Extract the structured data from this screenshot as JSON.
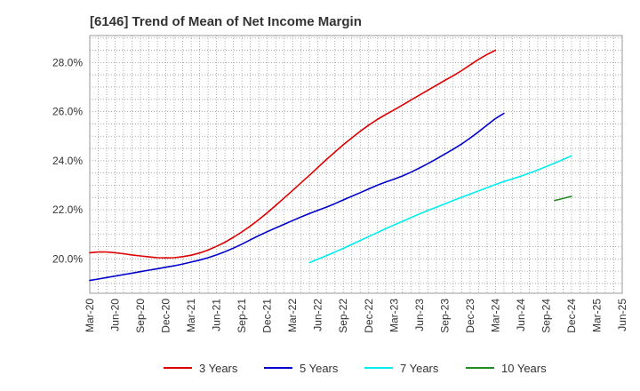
{
  "title": "[6146]  Trend of Mean of Net Income Margin",
  "chart_data": {
    "type": "line",
    "title": "[6146]  Trend of Mean of Net Income Margin",
    "xlabel": "",
    "ylabel": "",
    "x_ticks": [
      "Mar-20",
      "Jun-20",
      "Sep-20",
      "Dec-20",
      "Mar-21",
      "Jun-21",
      "Sep-21",
      "Dec-21",
      "Mar-22",
      "Jun-22",
      "Sep-22",
      "Dec-22",
      "Mar-23",
      "Jun-23",
      "Sep-23",
      "Dec-23",
      "Mar-24",
      "Jun-24",
      "Sep-24",
      "Dec-24",
      "Mar-25",
      "Jun-25"
    ],
    "y_ticks": [
      "20.0%",
      "22.0%",
      "24.0%",
      "26.0%",
      "28.0%"
    ],
    "y_tick_values": [
      20,
      22,
      24,
      26,
      28
    ],
    "ylim": [
      18.6,
      29.1
    ],
    "grid": true,
    "legend_position": "bottom",
    "series": [
      {
        "name": "3 Years",
        "color": "#dd0000",
        "start_index": 0,
        "values": [
          20.25,
          20.28,
          20.28,
          20.25,
          20.21,
          20.16,
          20.12,
          20.08,
          20.05,
          20.04,
          20.05,
          20.09,
          20.15,
          20.24,
          20.36,
          20.51,
          20.68,
          20.88,
          21.1,
          21.34,
          21.6,
          21.88,
          22.18,
          22.48,
          22.79,
          23.1,
          23.41,
          23.73,
          24.05,
          24.35,
          24.65,
          24.93,
          25.2,
          25.45,
          25.68,
          25.88,
          26.07,
          26.27,
          26.47,
          26.67,
          26.87,
          27.07,
          27.27,
          27.46,
          27.67,
          27.9,
          28.13,
          28.33,
          28.5
        ]
      },
      {
        "name": "5 Years",
        "color": "#0000cc",
        "start_index": 0,
        "values": [
          19.12,
          19.18,
          19.24,
          19.3,
          19.36,
          19.42,
          19.48,
          19.54,
          19.6,
          19.66,
          19.72,
          19.79,
          19.87,
          19.95,
          20.05,
          20.16,
          20.29,
          20.44,
          20.6,
          20.78,
          20.95,
          21.11,
          21.26,
          21.41,
          21.56,
          21.71,
          21.85,
          21.98,
          22.11,
          22.25,
          22.4,
          22.55,
          22.7,
          22.85,
          23.0,
          23.13,
          23.25,
          23.38,
          23.53,
          23.7,
          23.88,
          24.07,
          24.27,
          24.47,
          24.68,
          24.92,
          25.18,
          25.45,
          25.72,
          25.93
        ]
      },
      {
        "name": "7 Years",
        "color": "#00eeee",
        "start_index": 26,
        "values": [
          19.85,
          19.99,
          20.13,
          20.28,
          20.43,
          20.59,
          20.75,
          20.91,
          21.07,
          21.23,
          21.38,
          21.53,
          21.68,
          21.83,
          21.97,
          22.1,
          22.24,
          22.38,
          22.51,
          22.64,
          22.77,
          22.9,
          23.03,
          23.15,
          23.26,
          23.37,
          23.49,
          23.62,
          23.76,
          23.9,
          24.05,
          24.2
        ]
      },
      {
        "name": "10 Years",
        "color": "#228b22",
        "start_index": 55,
        "values": [
          22.38,
          22.46,
          22.55
        ]
      }
    ]
  }
}
